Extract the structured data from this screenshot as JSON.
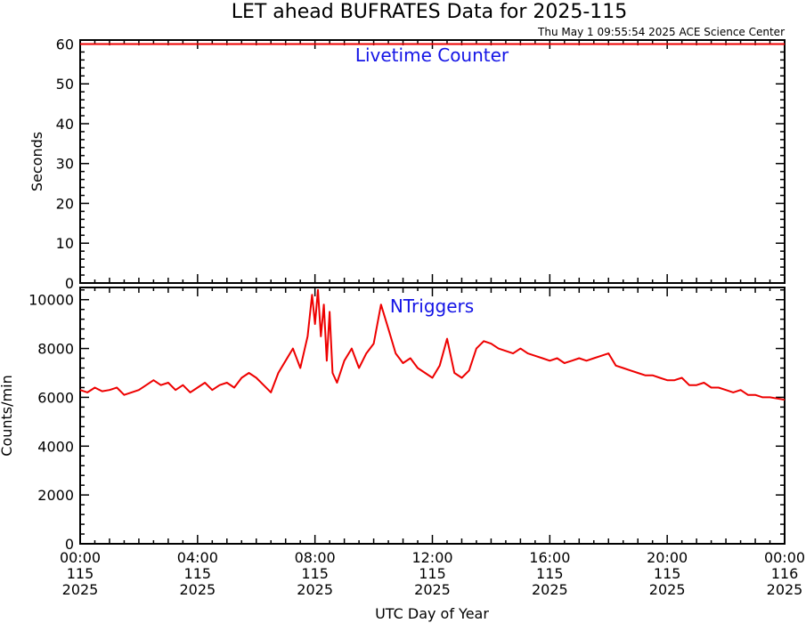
{
  "title": "LET ahead BUFRATES Data for 2025-115",
  "timestamp": "Thu May  1 09:55:54 2025 ACE Science Center",
  "xlabel": "UTC Day of Year",
  "x_ticks": [
    {
      "time": "00:00",
      "doy": "115",
      "year": "2025"
    },
    {
      "time": "04:00",
      "doy": "115",
      "year": "2025"
    },
    {
      "time": "08:00",
      "doy": "115",
      "year": "2025"
    },
    {
      "time": "12:00",
      "doy": "115",
      "year": "2025"
    },
    {
      "time": "16:00",
      "doy": "115",
      "year": "2025"
    },
    {
      "time": "20:00",
      "doy": "115",
      "year": "2025"
    },
    {
      "time": "00:00",
      "doy": "116",
      "year": "2025"
    }
  ],
  "colors": {
    "line": "#ee0000",
    "label": "#1414e6",
    "axes": "#000000"
  },
  "chart_data": [
    {
      "type": "line",
      "label": "Livetime Counter",
      "ylabel": "Seconds",
      "xlim_hours": [
        0,
        24
      ],
      "ylim": [
        0,
        61
      ],
      "y_ticks": [
        0,
        10,
        20,
        30,
        40,
        50,
        60
      ],
      "series": [
        {
          "x": [
            0,
            24
          ],
          "y": [
            60,
            60
          ]
        }
      ]
    },
    {
      "type": "line",
      "label": "NTriggers",
      "ylabel": "Counts/min",
      "xlim_hours": [
        0,
        24
      ],
      "ylim": [
        0,
        10500
      ],
      "y_ticks": [
        0,
        2000,
        4000,
        6000,
        8000,
        10000
      ],
      "series": [
        {
          "x": [
            0,
            0.25,
            0.5,
            0.75,
            1,
            1.25,
            1.5,
            1.75,
            2,
            2.25,
            2.5,
            2.75,
            3,
            3.25,
            3.5,
            3.75,
            4,
            4.25,
            4.5,
            4.75,
            5,
            5.25,
            5.5,
            5.75,
            6,
            6.25,
            6.5,
            6.75,
            7,
            7.25,
            7.5,
            7.75,
            7.9,
            8.0,
            8.1,
            8.2,
            8.3,
            8.4,
            8.5,
            8.6,
            8.75,
            9,
            9.25,
            9.5,
            9.75,
            10,
            10.25,
            10.5,
            10.75,
            11,
            11.25,
            11.5,
            11.75,
            12,
            12.25,
            12.5,
            12.75,
            13,
            13.25,
            13.5,
            13.75,
            14,
            14.25,
            14.5,
            14.75,
            15,
            15.25,
            15.5,
            15.75,
            16,
            16.25,
            16.5,
            16.75,
            17,
            17.25,
            17.5,
            17.75,
            18,
            18.25,
            18.5,
            18.75,
            19,
            19.25,
            19.5,
            19.75,
            20,
            20.25,
            20.5,
            20.75,
            21,
            21.25,
            21.5,
            21.75,
            22,
            22.25,
            22.5,
            22.75,
            23,
            23.25,
            23.5,
            23.75,
            24
          ],
          "y": [
            6300,
            6200,
            6400,
            6250,
            6300,
            6400,
            6100,
            6200,
            6300,
            6500,
            6700,
            6500,
            6600,
            6300,
            6500,
            6200,
            6400,
            6600,
            6300,
            6500,
            6600,
            6400,
            6800,
            7000,
            6800,
            6500,
            6200,
            7000,
            7500,
            8000,
            7200,
            8500,
            10200,
            9000,
            10400,
            8500,
            9800,
            7500,
            9500,
            7000,
            6600,
            7500,
            8000,
            7200,
            7800,
            8200,
            9800,
            8800,
            7800,
            7400,
            7600,
            7200,
            7000,
            6800,
            7300,
            8400,
            7000,
            6800,
            7100,
            8000,
            8300,
            8200,
            8000,
            7900,
            7800,
            8000,
            7800,
            7700,
            7600,
            7500,
            7600,
            7400,
            7500,
            7600,
            7500,
            7600,
            7700,
            7800,
            7300,
            7200,
            7100,
            7000,
            6900,
            6900,
            6800,
            6700,
            6700,
            6800,
            6500,
            6500,
            6600,
            6400,
            6400,
            6300,
            6200,
            6300,
            6100,
            6100,
            6000,
            6000,
            5950,
            5900
          ]
        }
      ]
    }
  ]
}
